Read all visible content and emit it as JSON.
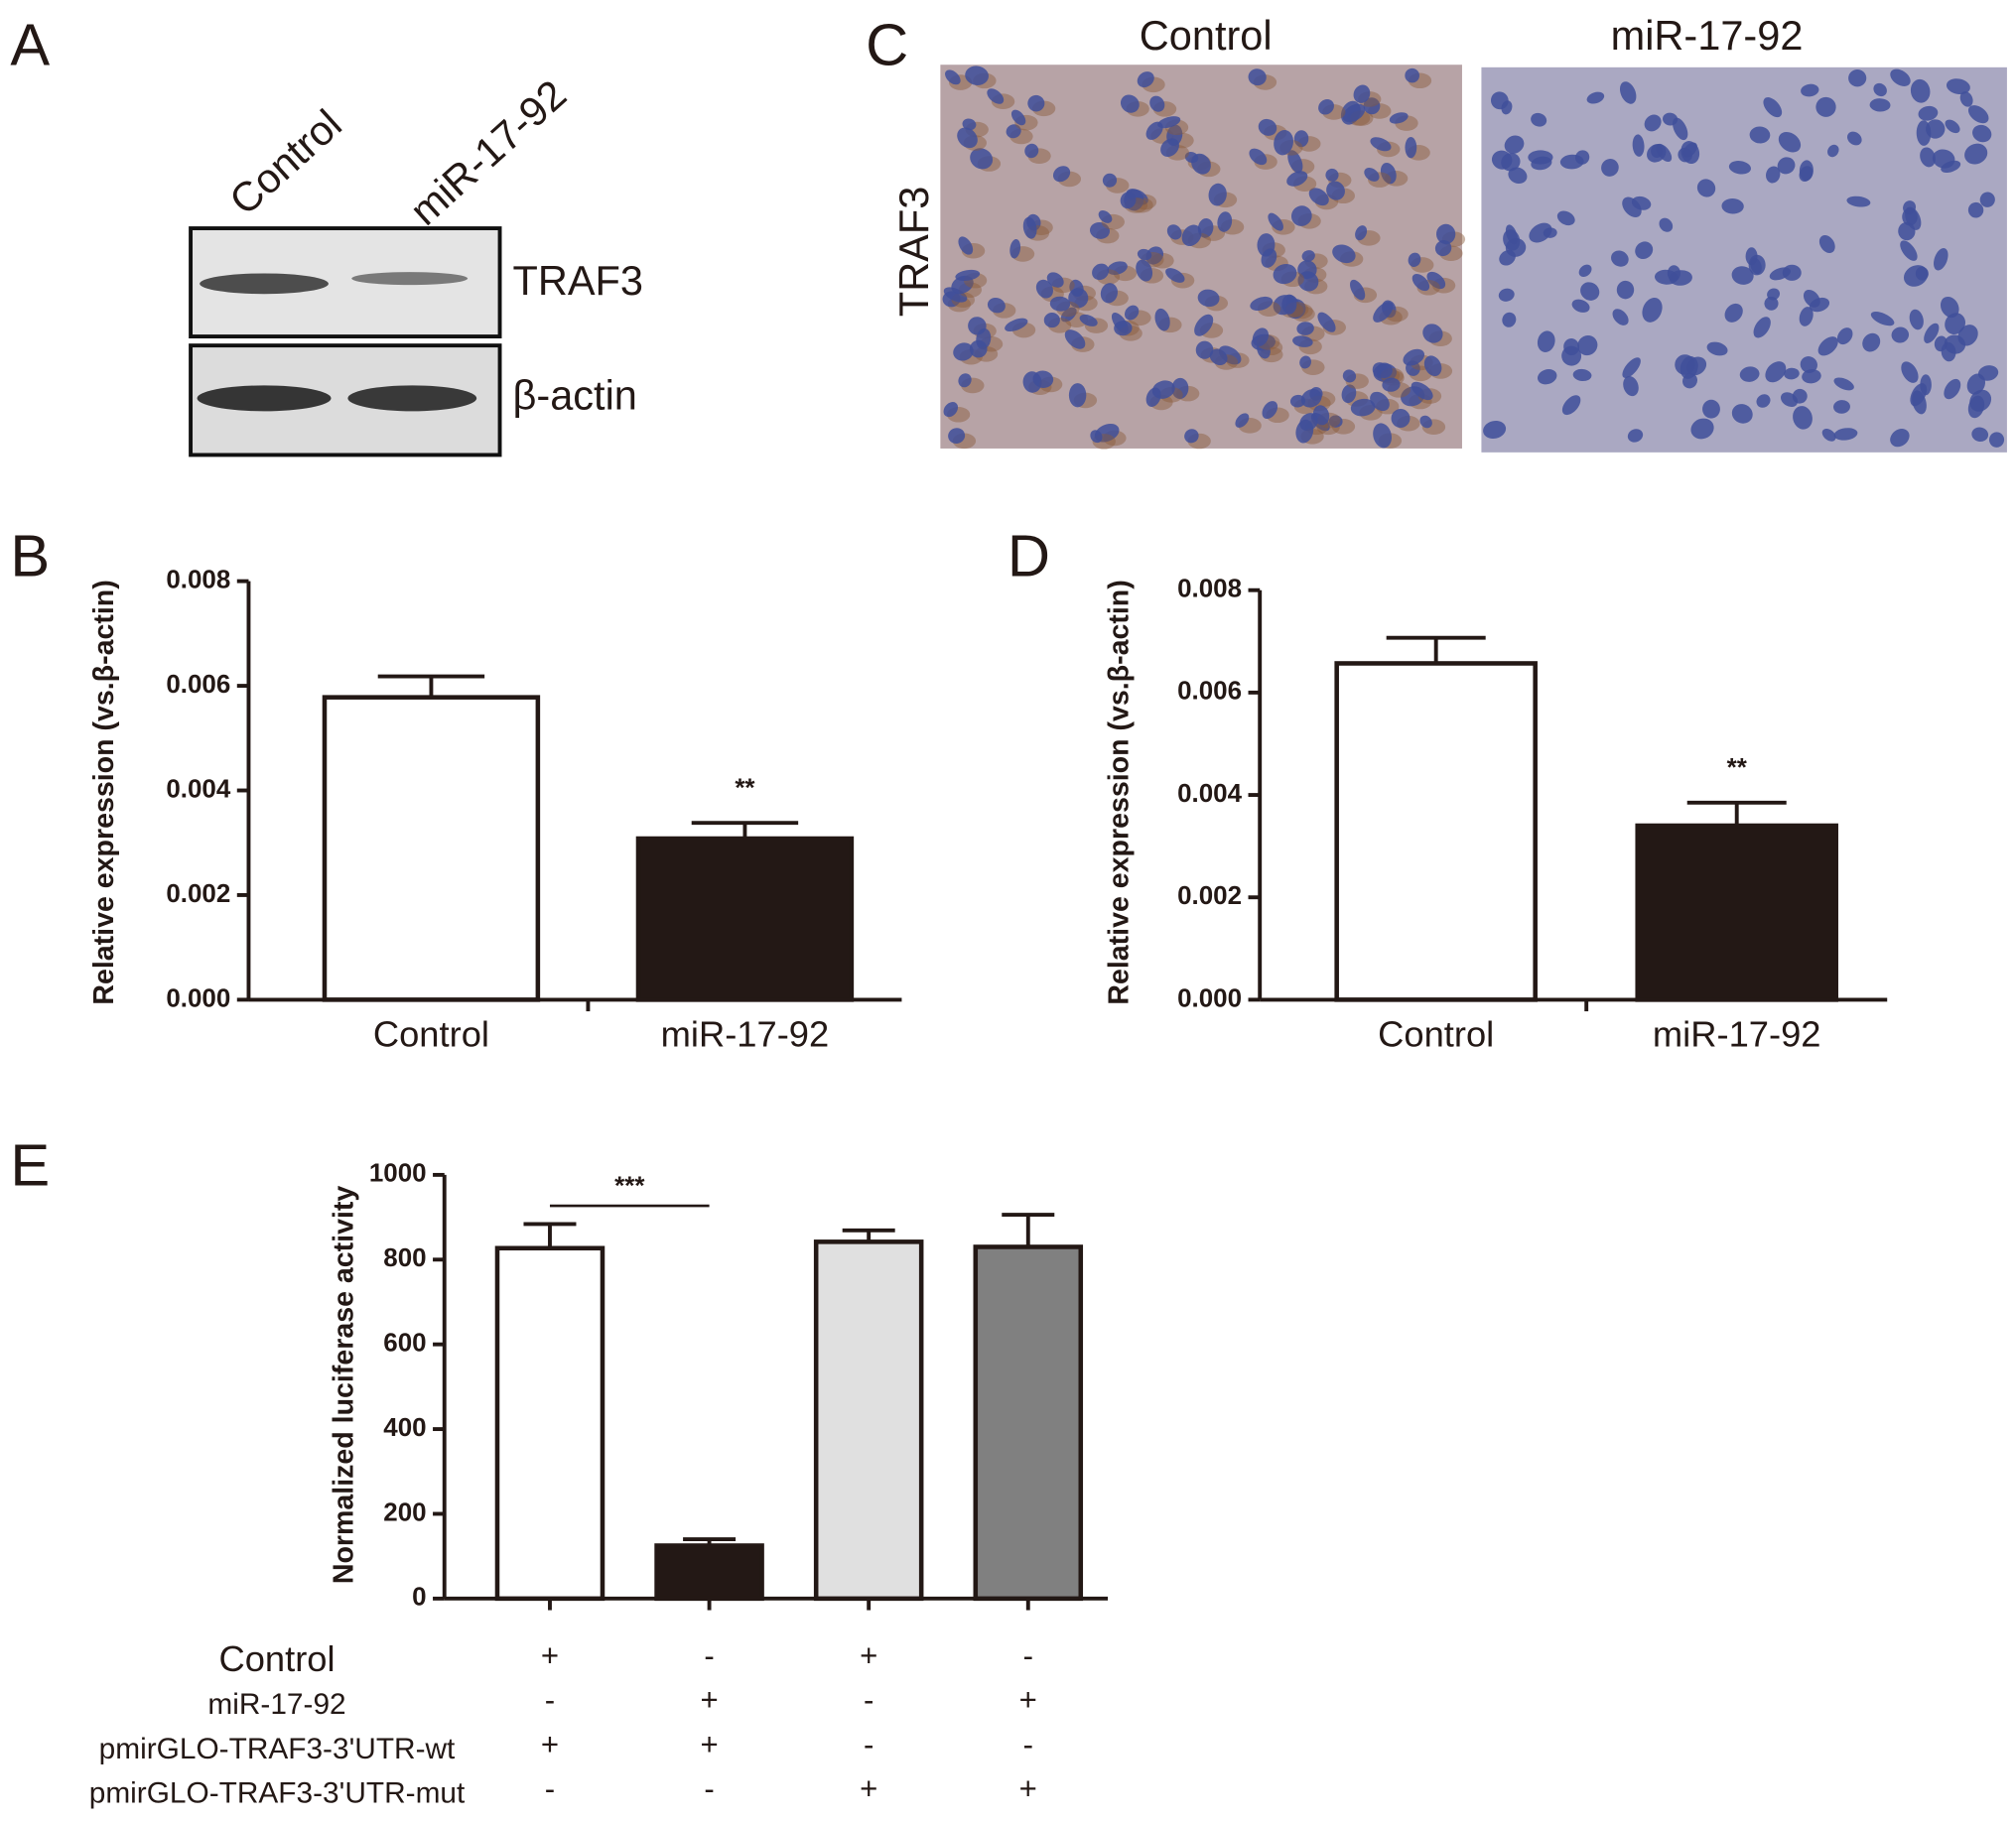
{
  "panel_labels": [
    "A",
    "B",
    "C",
    "D",
    "E"
  ],
  "blot": {
    "lanes": [
      "Control",
      "miR-17-92"
    ],
    "bands": [
      "TRAF3",
      "β-actin"
    ]
  },
  "ihc": {
    "columns": [
      "Control",
      "miR-17-92"
    ],
    "row_label": "TRAF3"
  },
  "chart_data": [
    {
      "type": "bar",
      "ylabel": "Relative expression (vs.β-actin)",
      "categories": [
        "Control",
        "miR-17-92"
      ],
      "values": [
        0.00578,
        0.00308
      ],
      "errors": [
        0.0004,
        0.0003
      ],
      "colors": [
        "#ffffff",
        "#231815"
      ],
      "value_annotations": [
        null,
        "**"
      ],
      "ylim": [
        0,
        0.008
      ],
      "yticks": [
        {
          "value": 0,
          "label": "0.000"
        },
        {
          "value": 0.002,
          "label": "0.002"
        },
        {
          "value": 0.004,
          "label": "0.004"
        },
        {
          "value": 0.006,
          "label": "0.006"
        },
        {
          "value": 0.008,
          "label": "0.008"
        }
      ]
    },
    {
      "type": "bar",
      "ylabel": "Relative expression (vs.β-actin)",
      "categories": [
        "Control",
        "miR-17-92"
      ],
      "values": [
        0.00657,
        0.0034
      ],
      "errors": [
        0.0005,
        0.00045
      ],
      "colors": [
        "#ffffff",
        "#231815"
      ],
      "value_annotations": [
        null,
        "**"
      ],
      "ylim": [
        0,
        0.008
      ],
      "yticks": [
        {
          "value": 0,
          "label": "0.000"
        },
        {
          "value": 0.002,
          "label": "0.002"
        },
        {
          "value": 0.004,
          "label": "0.004"
        },
        {
          "value": 0.006,
          "label": "0.006"
        },
        {
          "value": 0.008,
          "label": "0.008"
        }
      ]
    },
    {
      "type": "bar",
      "ylabel": "Normalized luciferase activity",
      "categories": [
        null,
        null,
        null,
        null
      ],
      "values": [
        827,
        125,
        842,
        830
      ],
      "errors": [
        57,
        15,
        27,
        76
      ],
      "colors": [
        "#ffffff",
        "#231815",
        "#e0e0e0",
        "#808080"
      ],
      "comparison_label": "***",
      "ylim": [
        0,
        1000
      ],
      "yticks": [
        0,
        200,
        400,
        600,
        800,
        1000
      ],
      "conditions": [
        {
          "label": "Control",
          "signs": [
            "+",
            "-",
            "+",
            "-"
          ]
        },
        {
          "label": "miR-17-92",
          "signs": [
            "-",
            "+",
            "-",
            "+"
          ]
        },
        {
          "label": "pmirGLO-TRAF3-3'UTR-wt",
          "signs": [
            "+",
            "+",
            "-",
            "-"
          ]
        },
        {
          "label": "pmirGLO-TRAF3-3'UTR-mut",
          "signs": [
            "-",
            "-",
            "+",
            "+"
          ]
        }
      ]
    }
  ]
}
